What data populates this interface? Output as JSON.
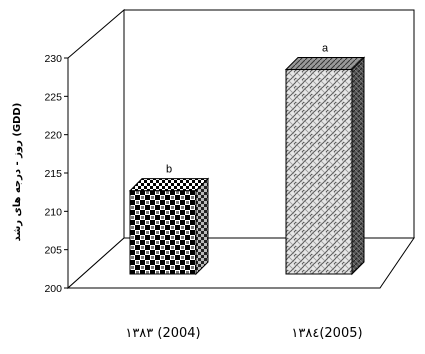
{
  "chart_data": {
    "type": "bar",
    "style": "3d",
    "ylabel": "(GDD) روز - درجه های رشد",
    "ylim": [
      200,
      230
    ],
    "yticks": [
      200,
      205,
      210,
      215,
      220,
      225,
      230
    ],
    "categories": [
      "۱۳۸۳ (2004)",
      "۱۳۸٤(2005)"
    ],
    "values": [
      214,
      229.8
    ],
    "significance_letters": [
      "b",
      "a"
    ],
    "grid": false,
    "legend": "none"
  }
}
